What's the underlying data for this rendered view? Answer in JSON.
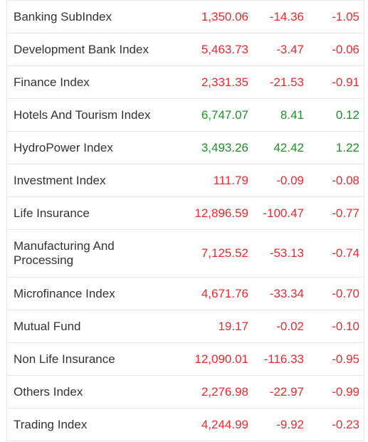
{
  "colors": {
    "negative": "#f0282d",
    "positive": "#1a9424",
    "label": "#333333"
  },
  "rows": [
    {
      "name": "Banking SubIndex",
      "value": "1,350.06",
      "change": "-14.36",
      "percent": "-1.05",
      "trend": "down"
    },
    {
      "name": "Development Bank Index",
      "value": "5,463.73",
      "change": "-3.47",
      "percent": "-0.06",
      "trend": "down"
    },
    {
      "name": "Finance Index",
      "value": "2,331.35",
      "change": "-21.53",
      "percent": "-0.91",
      "trend": "down"
    },
    {
      "name": "Hotels And Tourism Index",
      "value": "6,747.07",
      "change": "8.41",
      "percent": "0.12",
      "trend": "up"
    },
    {
      "name": "HydroPower Index",
      "value": "3,493.26",
      "change": "42.42",
      "percent": "1.22",
      "trend": "up"
    },
    {
      "name": "Investment Index",
      "value": "111.79",
      "change": "-0.09",
      "percent": "-0.08",
      "trend": "down"
    },
    {
      "name": "Life Insurance",
      "value": "12,896.59",
      "change": "-100.47",
      "percent": "-0.77",
      "trend": "down"
    },
    {
      "name": "Manufacturing And Processing",
      "value": "7,125.52",
      "change": "-53.13",
      "percent": "-0.74",
      "trend": "down"
    },
    {
      "name": "Microfinance Index",
      "value": "4,671.76",
      "change": "-33.34",
      "percent": "-0.70",
      "trend": "down"
    },
    {
      "name": "Mutual Fund",
      "value": "19.17",
      "change": "-0.02",
      "percent": "-0.10",
      "trend": "down"
    },
    {
      "name": "Non Life Insurance",
      "value": "12,090.01",
      "change": "-116.33",
      "percent": "-0.95",
      "trend": "down"
    },
    {
      "name": "Others Index",
      "value": "2,276.98",
      "change": "-22.97",
      "percent": "-0.99",
      "trend": "down"
    },
    {
      "name": "Trading Index",
      "value": "4,244.99",
      "change": "-9.92",
      "percent": "-0.23",
      "trend": "down"
    }
  ]
}
